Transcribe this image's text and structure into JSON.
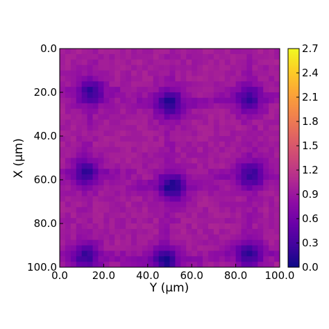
{
  "chart_data": {
    "type": "heatmap",
    "title": "",
    "xlabel": "Y (μm)",
    "ylabel": "X (μm)",
    "xlim": [
      0,
      100
    ],
    "ylim": [
      100,
      0
    ],
    "x_ticks": [
      "0.0",
      "20.0",
      "40.0",
      "60.0",
      "80.0",
      "100.0"
    ],
    "y_ticks": [
      "0.0",
      "20.0",
      "40.0",
      "60.0",
      "80.0",
      "100.0"
    ],
    "colormap": "plasma",
    "vmin": 0.0,
    "vmax": 2.7,
    "colorbar_ticks": [
      "0.0",
      "0.3",
      "0.6",
      "0.9",
      "1.2",
      "1.5",
      "1.8",
      "2.1",
      "2.4",
      "2.7"
    ],
    "grid": false,
    "grid_size": [
      40,
      40
    ],
    "background_level": 0.95,
    "minima": [
      {
        "x": 14,
        "y": 20,
        "value": 0.2
      },
      {
        "x": 50,
        "y": 25,
        "value": 0.1
      },
      {
        "x": 86,
        "y": 23,
        "value": 0.25
      },
      {
        "x": 12,
        "y": 57,
        "value": 0.2
      },
      {
        "x": 51,
        "y": 63,
        "value": 0.05
      },
      {
        "x": 87,
        "y": 58,
        "value": 0.2
      },
      {
        "x": 12,
        "y": 95,
        "value": 0.2
      },
      {
        "x": 48,
        "y": 97,
        "value": 0.1
      },
      {
        "x": 86,
        "y": 94,
        "value": 0.2
      }
    ]
  }
}
